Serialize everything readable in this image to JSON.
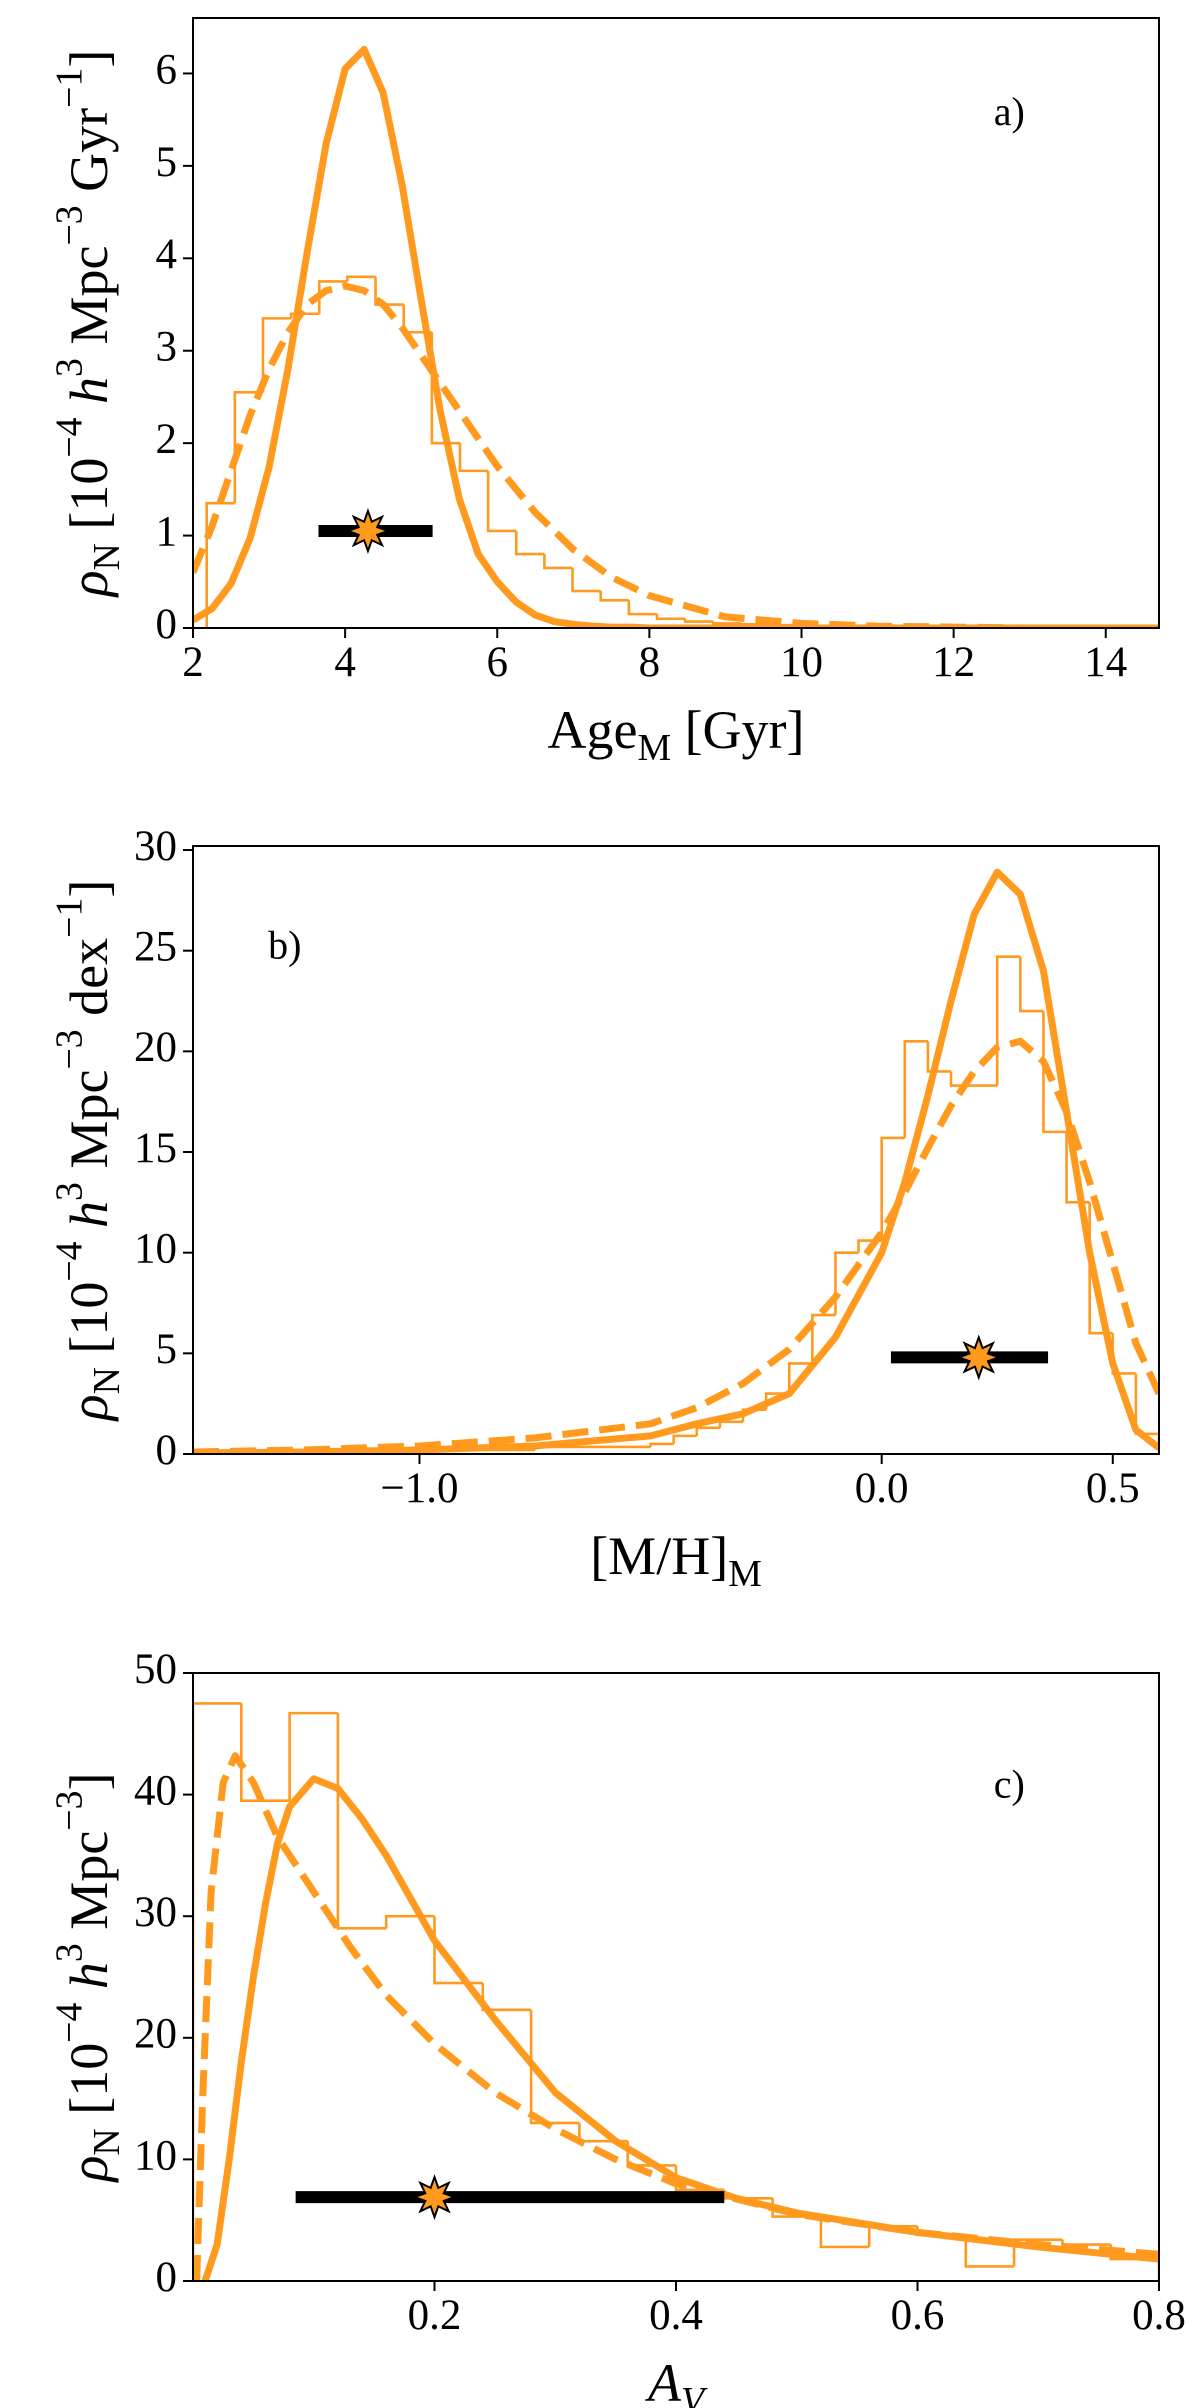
{
  "chart_data": [
    {
      "type": "histogram",
      "xlabel": [
        {
          "text": "Age"
        },
        {
          "text": "M",
          "sub": true
        },
        {
          "text": " [Gyr]"
        }
      ],
      "ylabel": [
        {
          "text": "ρ",
          "italic": true
        },
        {
          "text": "N",
          "sub": true
        },
        {
          "text": " [10"
        },
        {
          "text": "−4",
          "sup": true
        },
        {
          "text": " "
        },
        {
          "text": "h",
          "italic": true
        },
        {
          "text": "3",
          "sup": true
        },
        {
          "text": " Mpc"
        },
        {
          "text": "−3",
          "sup": true
        },
        {
          "text": " Gyr"
        },
        {
          "text": "−1",
          "sup": true
        },
        {
          "text": "]"
        }
      ],
      "annotation": "a)",
      "xlim": [
        2,
        14.7
      ],
      "ylim": [
        0,
        6.6
      ],
      "xticks": [
        2,
        4,
        6,
        8,
        10,
        12,
        14
      ],
      "yticks": [
        0,
        1,
        2,
        3,
        4,
        5,
        6
      ],
      "histogram": {
        "color": "#ff9a1e",
        "bins": [
          2.18,
          2.55,
          2.92,
          3.29,
          3.66,
          4.03,
          4.4,
          4.77,
          5.14,
          5.51,
          5.88,
          6.25,
          6.62,
          6.99,
          7.36,
          7.73,
          8.1,
          8.47,
          8.84,
          9.21,
          9.58,
          9.95,
          10.32,
          10.69,
          11.06,
          11.43,
          11.8,
          15
        ],
        "counts": [
          1.35,
          2.55,
          3.35,
          3.4,
          3.75,
          3.8,
          3.5,
          3.2,
          2.0,
          1.7,
          1.05,
          0.8,
          0.65,
          0.4,
          0.3,
          0.15,
          0.1,
          0.07,
          0.05,
          0.04,
          0.03,
          0.02,
          0.02,
          0.01,
          0.01,
          0.01,
          0.005
        ]
      },
      "series": [
        {
          "style": "solid",
          "color": "#ff9a1e",
          "x": [
            2,
            2.25,
            2.5,
            2.75,
            3,
            3.25,
            3.5,
            3.75,
            4,
            4.25,
            4.5,
            4.75,
            5,
            5.25,
            5.5,
            5.75,
            6,
            6.25,
            6.5,
            6.75,
            7,
            7.25,
            7.5,
            7.75,
            8,
            9,
            10,
            11,
            12,
            13,
            14,
            15
          ],
          "values": [
            0.085,
            0.21,
            0.48,
            0.97,
            1.74,
            2.81,
            4.06,
            5.24,
            6.05,
            6.26,
            5.79,
            4.79,
            3.55,
            2.35,
            1.4,
            0.8,
            0.5,
            0.28,
            0.14,
            0.07,
            0.04,
            0.02,
            0.01,
            0.01,
            0,
            0,
            0,
            0,
            0,
            0,
            0,
            0
          ]
        },
        {
          "style": "dashed",
          "color": "#ff9a1e",
          "x": [
            2,
            2.25,
            2.5,
            2.75,
            3,
            3.25,
            3.5,
            3.75,
            4,
            4.25,
            4.5,
            4.75,
            5,
            5.25,
            5.5,
            5.75,
            6,
            6.25,
            6.5,
            6.75,
            7,
            7.25,
            7.5,
            7.75,
            8,
            9,
            10,
            11,
            12,
            13,
            14,
            15
          ],
          "values": [
            0.6,
            1.1,
            1.7,
            2.3,
            2.8,
            3.2,
            3.5,
            3.65,
            3.7,
            3.65,
            3.5,
            3.25,
            2.95,
            2.65,
            2.35,
            2.05,
            1.75,
            1.5,
            1.25,
            1.05,
            0.85,
            0.7,
            0.55,
            0.45,
            0.35,
            0.12,
            0.05,
            0.02,
            0.01,
            0,
            0,
            0
          ]
        }
      ],
      "errorbar": {
        "x": 4.3,
        "y": 1.05,
        "xmin": 3.65,
        "xmax": 5.15,
        "color": "#000000",
        "marker_color": "#ff9a1e"
      }
    },
    {
      "type": "histogram",
      "xlabel": [
        {
          "text": "[M/H]"
        },
        {
          "text": "M",
          "sub": true
        }
      ],
      "ylabel": [
        {
          "text": "ρ",
          "italic": true
        },
        {
          "text": "N",
          "sub": true
        },
        {
          "text": " [10"
        },
        {
          "text": "−4",
          "sup": true
        },
        {
          "text": " "
        },
        {
          "text": "h",
          "italic": true
        },
        {
          "text": "3",
          "sup": true
        },
        {
          "text": " Mpc"
        },
        {
          "text": "−3",
          "sup": true
        },
        {
          "text": " dex"
        },
        {
          "text": "−1",
          "sup": true
        },
        {
          "text": "]"
        }
      ],
      "annotation": "b)",
      "xlim": [
        -1.49,
        0.6
      ],
      "ylim": [
        0,
        30.2
      ],
      "xticks": [
        {
          "value": -1,
          "label": "−1.0"
        },
        {
          "value": 0,
          "label": "0.0"
        },
        0.5
      ],
      "yticks": [
        0,
        5,
        10,
        15,
        20,
        25,
        30
      ],
      "histogram": {
        "color": "#ff9a1e",
        "bins": [
          -1.5,
          -1.25,
          -1.0,
          -0.75,
          -0.5,
          -0.45,
          -0.4,
          -0.35,
          -0.3,
          -0.25,
          -0.2,
          -0.15,
          -0.1,
          -0.05,
          0,
          0.05,
          0.1,
          0.15,
          0.2,
          0.25,
          0.3,
          0.35,
          0.4,
          0.45,
          0.5,
          0.55,
          0.6
        ],
        "counts": [
          0.05,
          0.1,
          0.2,
          0.35,
          0.5,
          0.9,
          1.3,
          1.6,
          2.2,
          3.0,
          4.5,
          6.9,
          10.0,
          10.6,
          15.7,
          20.5,
          19.0,
          18.3,
          18.3,
          24.7,
          22.0,
          16.0,
          12.5,
          6.0,
          4.0,
          1.0
        ]
      },
      "series": [
        {
          "style": "solid",
          "color": "#ff9a1e",
          "x": [
            -1.49,
            -1.25,
            -1,
            -0.75,
            -0.5,
            -0.4,
            -0.3,
            -0.2,
            -0.1,
            0,
            0.05,
            0.1,
            0.15,
            0.2,
            0.25,
            0.3,
            0.35,
            0.4,
            0.45,
            0.5,
            0.55,
            0.6
          ],
          "values": [
            0.05,
            0.1,
            0.2,
            0.4,
            0.9,
            1.5,
            2.0,
            3.0,
            5.8,
            10,
            13.5,
            17.8,
            22.5,
            26.8,
            28.9,
            27.8,
            24,
            17,
            10,
            4.5,
            1.2,
            0.3
          ]
        },
        {
          "style": "dashed",
          "color": "#ff9a1e",
          "x": [
            -1.49,
            -1.25,
            -1,
            -0.75,
            -0.5,
            -0.4,
            -0.3,
            -0.2,
            -0.1,
            0,
            0.05,
            0.1,
            0.15,
            0.2,
            0.25,
            0.3,
            0.35,
            0.4,
            0.45,
            0.5,
            0.55,
            0.6
          ],
          "values": [
            0.1,
            0.2,
            0.4,
            0.8,
            1.5,
            2.3,
            3.5,
            5.2,
            7.8,
            11,
            13,
            15.2,
            17.3,
            19.0,
            20.2,
            20.5,
            19.5,
            17,
            13.5,
            9.5,
            5.5,
            3
          ]
        }
      ],
      "errorbar": {
        "x": 0.21,
        "y": 4.8,
        "xmin": 0.02,
        "xmax": 0.36,
        "color": "#000000",
        "marker_color": "#ff9a1e"
      }
    },
    {
      "type": "histogram",
      "xlabel": [
        {
          "text": "A",
          "italic": true
        },
        {
          "text": "V",
          "sub": true,
          "italic": true
        }
      ],
      "ylabel": [
        {
          "text": "ρ",
          "italic": true
        },
        {
          "text": "N",
          "sub": true
        },
        {
          "text": " [10"
        },
        {
          "text": "−4",
          "sup": true
        },
        {
          "text": " "
        },
        {
          "text": "h",
          "italic": true
        },
        {
          "text": "3",
          "sup": true
        },
        {
          "text": " Mpc"
        },
        {
          "text": "−3",
          "sup": true
        },
        {
          "text": "]"
        }
      ],
      "annotation": "c)",
      "xlim": [
        0,
        0.8
      ],
      "ylim": [
        0,
        50
      ],
      "xticks": [
        0.2,
        0.4,
        0.6,
        0.8
      ],
      "yticks": [
        0,
        10,
        20,
        30,
        40,
        50
      ],
      "histogram": {
        "color": "#ff9a1e",
        "bins": [
          0,
          0.04,
          0.08,
          0.12,
          0.16,
          0.2,
          0.24,
          0.28,
          0.32,
          0.36,
          0.4,
          0.44,
          0.48,
          0.52,
          0.56,
          0.6,
          0.64,
          0.68,
          0.72,
          0.76,
          0.8
        ],
        "counts": [
          47.5,
          39.5,
          46.7,
          29.0,
          30.0,
          24.5,
          22.3,
          13.0,
          11.5,
          9.5,
          7.5,
          6.8,
          5.3,
          2.8,
          4.5,
          3.8,
          1.2,
          3.4,
          3.0,
          1.8
        ]
      },
      "series": [
        {
          "style": "solid",
          "color": "#ff9a1e",
          "x": [
            0.01,
            0.02,
            0.03,
            0.04,
            0.05,
            0.06,
            0.07,
            0.08,
            0.1,
            0.12,
            0.14,
            0.16,
            0.2,
            0.25,
            0.3,
            0.35,
            0.4,
            0.45,
            0.5,
            0.6,
            0.7,
            0.8
          ],
          "values": [
            0,
            3,
            10,
            18,
            25,
            31,
            36,
            39,
            41.3,
            40.5,
            38,
            35,
            28,
            21.5,
            15.5,
            11.5,
            8.5,
            6.8,
            5.6,
            4,
            2.8,
            1.8
          ]
        },
        {
          "style": "dashed",
          "color": "#ff9a1e",
          "x": [
            0.003,
            0.008,
            0.015,
            0.025,
            0.035,
            0.05,
            0.07,
            0.1,
            0.13,
            0.16,
            0.2,
            0.25,
            0.3,
            0.35,
            0.4,
            0.5,
            0.6,
            0.7,
            0.8
          ],
          "values": [
            0,
            15,
            32,
            41,
            43.2,
            41,
            36.5,
            32,
            27.5,
            23.5,
            19.5,
            15.5,
            12.5,
            10,
            8,
            5.5,
            4,
            3,
            2.2
          ]
        }
      ],
      "errorbar": {
        "x": 0.2,
        "y": 6.9,
        "xmin": 0.085,
        "xmax": 0.44,
        "color": "#000000",
        "marker_color": "#ff9a1e"
      }
    }
  ]
}
